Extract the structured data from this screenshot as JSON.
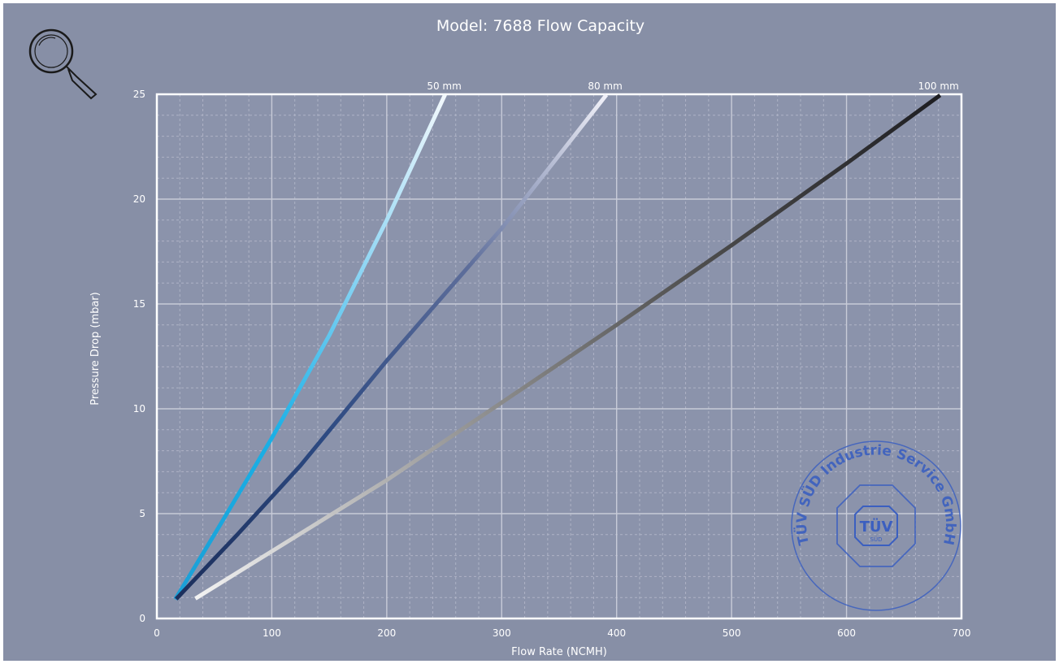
{
  "chart_data": {
    "type": "line",
    "title": "Model: 7688 Flow Capacity",
    "xlabel": "Flow Rate (NCMH)",
    "ylabel": "Pressure Drop (mbar)",
    "xlim": [
      0,
      700
    ],
    "ylim": [
      0,
      25
    ],
    "x_ticks": [
      "0",
      "100",
      "200",
      "300",
      "400",
      "500",
      "600",
      "700"
    ],
    "y_ticks": [
      "0",
      "5",
      "10",
      "15",
      "20",
      "25"
    ],
    "grid": true,
    "series": [
      {
        "name": "50 mm",
        "points": [
          [
            17,
            1.0
          ],
          [
            50,
            4.0
          ],
          [
            100,
            8.6
          ],
          [
            150,
            13.5
          ],
          [
            200,
            19.0
          ],
          [
            250,
            24.9
          ]
        ],
        "gradient": [
          "#1b9fd6",
          "#1ab0e6",
          "#8fd6f4",
          "#f2f8fc"
        ]
      },
      {
        "name": "80 mm",
        "points": [
          [
            18,
            1.0
          ],
          [
            70,
            4.0
          ],
          [
            125,
            7.3
          ],
          [
            200,
            12.3
          ],
          [
            300,
            18.6
          ],
          [
            390,
            24.9
          ]
        ],
        "gradient": [
          "#1c2f5c",
          "#2d4a82",
          "#5d6d9a",
          "#f0f0f8"
        ]
      },
      {
        "name": "100 mm",
        "points": [
          [
            35,
            1.0
          ],
          [
            100,
            3.2
          ],
          [
            200,
            6.6
          ],
          [
            300,
            10.3
          ],
          [
            400,
            14.0
          ],
          [
            500,
            17.8
          ],
          [
            600,
            21.7
          ],
          [
            680,
            24.9
          ]
        ],
        "gradient": [
          "#f2f2f2",
          "#9a9a9a",
          "#4e4e4e",
          "#1e1e22"
        ]
      }
    ],
    "colors": {
      "background": "#878fa6",
      "plot_area": "#8b93ab",
      "grid_major": "#c8cbd8",
      "grid_minor": "#aeb3c6",
      "text": "#ffffff"
    }
  },
  "stamp": {
    "text": "TÜV SÜD Industrie Service GmbH",
    "logo_text": "TÜV",
    "logo_sub": "SÜD",
    "color": "#3b5fc0"
  },
  "toolbar": {
    "zoom_icon": "magnifier-icon"
  }
}
